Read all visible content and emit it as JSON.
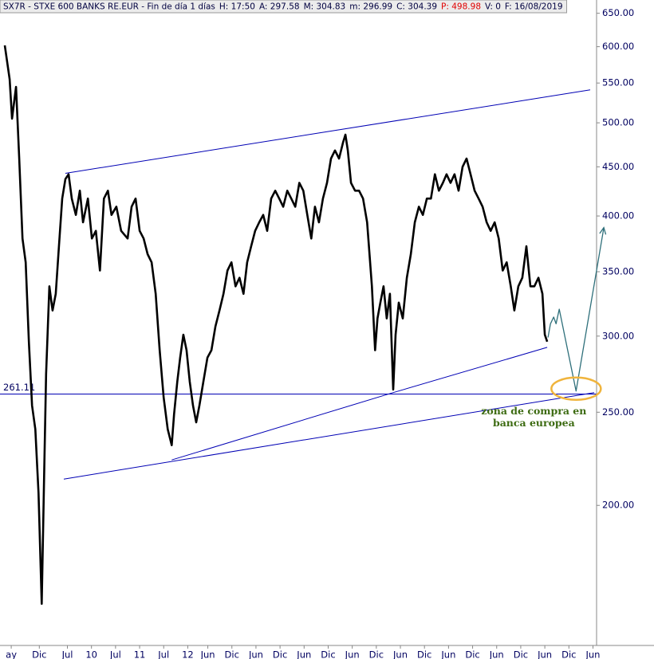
{
  "chart_data": {
    "type": "line",
    "header": [
      {
        "text": "SX7R - STXE 600 BANKS RE.EUR - Fin de día 1 días",
        "color": "#000040"
      },
      {
        "text": "H: 17:50",
        "color": "#000040"
      },
      {
        "text": "A: 297.58",
        "color": "#000040"
      },
      {
        "text": "M: 304.83",
        "color": "#000040"
      },
      {
        "text": "m: 296.99",
        "color": "#000040"
      },
      {
        "text": "C: 304.39",
        "color": "#000040"
      },
      {
        "text": "P: 498.98",
        "color": "#e00000"
      },
      {
        "text": "V: 0",
        "color": "#000040"
      },
      {
        "text": "F: 16/08/2019",
        "color": "#000040"
      }
    ],
    "log_scale": true,
    "xlim": [
      -2.8,
      145.9
    ],
    "ylim": [
      143,
      671
    ],
    "xticks": [
      {
        "value": 0,
        "label": "ay"
      },
      {
        "value": 7,
        "label": "Dic"
      },
      {
        "value": 14,
        "label": "Jul"
      },
      {
        "value": 20,
        "label": "10"
      },
      {
        "value": 26,
        "label": "Jul"
      },
      {
        "value": 32,
        "label": "11"
      },
      {
        "value": 38,
        "label": "Jul"
      },
      {
        "value": 44,
        "label": "12"
      },
      {
        "value": 49,
        "label": "Jun"
      },
      {
        "value": 55,
        "label": "Dic"
      },
      {
        "value": 61,
        "label": "Jun"
      },
      {
        "value": 67,
        "label": "Dic"
      },
      {
        "value": 73,
        "label": "Jun"
      },
      {
        "value": 79,
        "label": "Dic"
      },
      {
        "value": 85,
        "label": "Jun"
      },
      {
        "value": 91,
        "label": "Dic"
      },
      {
        "value": 97,
        "label": "Jun"
      },
      {
        "value": 103,
        "label": "Dic"
      },
      {
        "value": 109,
        "label": "Jun"
      },
      {
        "value": 115,
        "label": "Dic"
      },
      {
        "value": 121,
        "label": "Jun"
      },
      {
        "value": 127,
        "label": "Dic"
      },
      {
        "value": 133,
        "label": "Jun"
      },
      {
        "value": 139,
        "label": "Dic"
      },
      {
        "value": 145,
        "label": "Jun"
      }
    ],
    "yticks": [
      {
        "value": 200,
        "label": "200.00"
      },
      {
        "value": 250,
        "label": "250.00"
      },
      {
        "value": 300,
        "label": "300.00"
      },
      {
        "value": 350,
        "label": "350.00"
      },
      {
        "value": 400,
        "label": "400.00"
      },
      {
        "value": 450,
        "label": "450.00"
      },
      {
        "value": 500,
        "label": "500.00"
      },
      {
        "value": 550,
        "label": "550.00"
      },
      {
        "value": 600,
        "label": "600.00"
      },
      {
        "value": 650,
        "label": "650.00"
      }
    ],
    "series": [
      {
        "color": "#000000",
        "x": [
          -1.6,
          -0.4,
          0.2,
          1.2,
          2.0,
          2.8,
          3.6,
          4.4,
          5.2,
          6.0,
          6.8,
          7.6,
          8.2,
          8.7,
          9.5,
          10.3,
          11.1,
          11.9,
          12.7,
          13.5,
          14.3,
          15.1,
          16.1,
          17.1,
          17.9,
          19.1,
          20.1,
          21.1,
          22.1,
          23.1,
          24.1,
          25.0,
          26.2,
          27.4,
          29.0,
          30.0,
          31.0,
          32.0,
          33.0,
          34.0,
          35.0,
          36.0,
          37.0,
          38.0,
          39.0,
          40.0,
          40.6,
          41.4,
          42.1,
          42.9,
          43.7,
          44.5,
          45.3,
          46.1,
          46.9,
          47.9,
          48.9,
          49.9,
          50.9,
          51.9,
          52.9,
          53.9,
          54.9,
          55.9,
          56.9,
          57.9,
          58.8,
          59.8,
          60.8,
          61.8,
          62.8,
          63.8,
          64.8,
          65.8,
          66.8,
          67.8,
          68.8,
          69.8,
          70.8,
          71.8,
          72.8,
          73.8,
          74.8,
          75.7,
          76.7,
          77.7,
          78.7,
          79.7,
          80.7,
          81.7,
          82.7,
          83.3,
          83.9,
          84.7,
          85.7,
          86.7,
          87.7,
          88.7,
          89.3,
          89.9,
          90.7,
          91.3,
          92.0,
          92.8,
          93.6,
          94.4,
          95.2,
          95.8,
          96.6,
          97.6,
          98.6,
          99.6,
          100.6,
          101.6,
          102.6,
          103.6,
          104.6,
          105.6,
          106.6,
          107.6,
          108.5,
          109.5,
          110.5,
          111.5,
          112.5,
          113.5,
          114.5,
          115.5,
          116.5,
          117.5,
          118.5,
          119.5,
          120.5,
          121.5,
          122.5,
          123.5,
          124.5,
          125.4,
          126.4,
          127.4,
          128.4,
          129.4,
          130.4,
          131.4,
          132.4,
          133.0,
          133.6
        ],
        "values": [
          602,
          555,
          505,
          545,
          459,
          379,
          358,
          296,
          254,
          240,
          206,
          158,
          214,
          274,
          338,
          319,
          332,
          372,
          417,
          437,
          442,
          417,
          401,
          425,
          394,
          417,
          379,
          386,
          351,
          417,
          425,
          401,
          409,
          386,
          379,
          409,
          417,
          386,
          379,
          365,
          358,
          332,
          290,
          259,
          240,
          231,
          249,
          269,
          285,
          301,
          290,
          269,
          254,
          244,
          254,
          269,
          285,
          290,
          307,
          319,
          332,
          351,
          358,
          338,
          345,
          332,
          358,
          372,
          386,
          394,
          401,
          386,
          417,
          425,
          417,
          409,
          425,
          417,
          409,
          433,
          425,
          401,
          379,
          409,
          394,
          417,
          433,
          459,
          468,
          459,
          477,
          486,
          468,
          433,
          425,
          425,
          417,
          394,
          365,
          338,
          290,
          313,
          325,
          338,
          313,
          332,
          264,
          301,
          325,
          313,
          345,
          365,
          394,
          409,
          401,
          417,
          417,
          442,
          425,
          433,
          442,
          433,
          442,
          425,
          450,
          459,
          442,
          425,
          417,
          409,
          394,
          386,
          394,
          379,
          351,
          358,
          338,
          319,
          338,
          345,
          372,
          338,
          338,
          345,
          332,
          301,
          296
        ]
      }
    ],
    "trend_color": "#0000b4",
    "trendlines": [
      {
        "x": [
          13.5,
          144.3
        ],
        "values": [
          443,
          541
        ]
      },
      {
        "x": [
          13.1,
          145.3
        ],
        "values": [
          213,
          262
        ]
      },
      {
        "x": [
          40.0,
          95.2
        ],
        "values": [
          223,
          262
        ]
      },
      {
        "x": [
          95.2,
          133.6
        ],
        "values": [
          262,
          292
        ]
      }
    ],
    "level": {
      "value": 261.11,
      "label": "261.11"
    },
    "projection": {
      "color": "#2e6f7a",
      "x": [
        133.8,
        134.4,
        135.2,
        135.8,
        136.6,
        140.8,
        147.7
      ],
      "values": [
        299,
        309,
        314,
        309,
        320,
        263,
        389
      ]
    },
    "highlight_color": "#f0b43c",
    "annotation": {
      "lines": [
        "zona de compra en",
        "banca europea"
      ],
      "color": "#3d6b12"
    }
  }
}
